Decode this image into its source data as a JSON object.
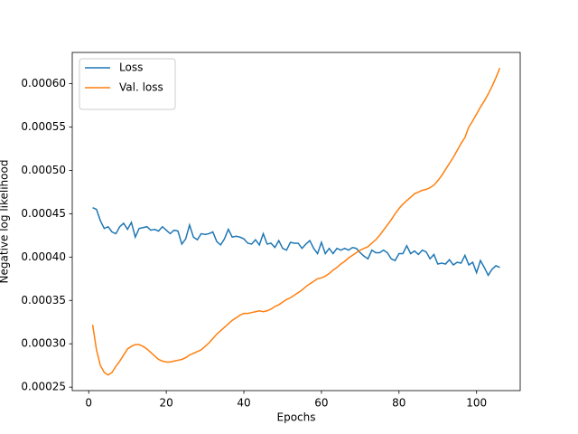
{
  "chart_data": {
    "type": "line",
    "xlabel": "Epochs",
    "ylabel": "Negative log likelihood",
    "x": [
      1,
      2,
      3,
      4,
      5,
      6,
      7,
      8,
      9,
      10,
      11,
      12,
      13,
      14,
      15,
      16,
      17,
      18,
      19,
      20,
      21,
      22,
      23,
      24,
      25,
      26,
      27,
      28,
      29,
      30,
      31,
      32,
      33,
      34,
      35,
      36,
      37,
      38,
      39,
      40,
      41,
      42,
      43,
      44,
      45,
      46,
      47,
      48,
      49,
      50,
      51,
      52,
      53,
      54,
      55,
      56,
      57,
      58,
      59,
      60,
      61,
      62,
      63,
      64,
      65,
      66,
      67,
      68,
      69,
      70,
      71,
      72,
      73,
      74,
      75,
      76,
      77,
      78,
      79,
      80,
      81,
      82,
      83,
      84,
      85,
      86,
      87,
      88,
      89,
      90,
      91,
      92,
      93,
      94,
      95,
      96,
      97,
      98,
      99,
      100,
      101,
      102,
      103,
      104,
      105,
      106
    ],
    "series": [
      {
        "name": "Loss",
        "color": "#1f77b4",
        "values": [
          0.000457,
          0.000455,
          0.000442,
          0.000433,
          0.000435,
          0.000429,
          0.000427,
          0.000435,
          0.000439,
          0.000432,
          0.00044,
          0.000423,
          0.000433,
          0.000434,
          0.000435,
          0.000431,
          0.000432,
          0.00043,
          0.000435,
          0.000431,
          0.000427,
          0.000431,
          0.00043,
          0.000415,
          0.000421,
          0.000437,
          0.000423,
          0.00042,
          0.000427,
          0.000426,
          0.000427,
          0.000429,
          0.000418,
          0.000414,
          0.000421,
          0.000432,
          0.000423,
          0.000424,
          0.000423,
          0.000421,
          0.000416,
          0.000415,
          0.00042,
          0.000414,
          0.000427,
          0.000415,
          0.000416,
          0.000411,
          0.000419,
          0.00041,
          0.000408,
          0.000417,
          0.000416,
          0.000416,
          0.00041,
          0.000415,
          0.000419,
          0.00041,
          0.000404,
          0.000417,
          0.000404,
          0.00041,
          0.000404,
          0.00041,
          0.000408,
          0.00041,
          0.000408,
          0.000411,
          0.00041,
          0.000405,
          0.000401,
          0.000398,
          0.000408,
          0.000405,
          0.000405,
          0.000408,
          0.000405,
          0.000398,
          0.000396,
          0.000404,
          0.000404,
          0.000413,
          0.000404,
          0.000407,
          0.000403,
          0.000408,
          0.000406,
          0.000398,
          0.000403,
          0.000392,
          0.000393,
          0.000392,
          0.000397,
          0.000391,
          0.000394,
          0.000393,
          0.000402,
          0.000391,
          0.000394,
          0.000382,
          0.000396,
          0.000388,
          0.000379,
          0.000386,
          0.00039,
          0.000388
        ]
      },
      {
        "name": "Val. loss",
        "color": "#ff7f0e",
        "values": [
          0.000322,
          0.000293,
          0.000275,
          0.000267,
          0.000264,
          0.000267,
          0.000274,
          0.00028,
          0.000287,
          0.000294,
          0.000297,
          0.000299,
          0.000299,
          0.000297,
          0.000294,
          0.00029,
          0.000286,
          0.000282,
          0.00028,
          0.000279,
          0.000279,
          0.00028,
          0.000281,
          0.000282,
          0.000284,
          0.000287,
          0.000289,
          0.000291,
          0.000293,
          0.000297,
          0.000301,
          0.000306,
          0.000311,
          0.000315,
          0.000319,
          0.000323,
          0.000327,
          0.00033,
          0.000333,
          0.000335,
          0.000335,
          0.000336,
          0.000337,
          0.000338,
          0.000337,
          0.000338,
          0.00034,
          0.000343,
          0.000345,
          0.000348,
          0.000351,
          0.000353,
          0.000356,
          0.000359,
          0.000362,
          0.000366,
          0.000369,
          0.000372,
          0.000375,
          0.000376,
          0.000378,
          0.000381,
          0.000385,
          0.000388,
          0.000392,
          0.000395,
          0.000399,
          0.000402,
          0.000405,
          0.000408,
          0.00041,
          0.000412,
          0.000416,
          0.00042,
          0.000425,
          0.000431,
          0.000437,
          0.000443,
          0.00045,
          0.000456,
          0.000461,
          0.000465,
          0.000469,
          0.000473,
          0.000475,
          0.000477,
          0.000478,
          0.00048,
          0.000483,
          0.000488,
          0.000494,
          0.000501,
          0.000508,
          0.000515,
          0.000523,
          0.000531,
          0.000538,
          0.00055,
          0.000557,
          0.000565,
          0.000573,
          0.00058,
          0.000588,
          0.000597,
          0.000607,
          0.000618
        ]
      }
    ],
    "xlim": [
      -4.25,
      111.25
    ],
    "ylim": [
      0.000246,
      0.000636
    ],
    "xticks": [
      0,
      20,
      40,
      60,
      80,
      100
    ],
    "yticks": [
      0.00025,
      {
        "value": 0.0003,
        "label": "0.00030"
      },
      0.00035,
      {
        "value": 0.0004,
        "label": "0.00040"
      },
      0.00045,
      {
        "value": 0.0005,
        "label": "0.00050"
      },
      0.00055,
      {
        "value": 0.0006,
        "label": "0.00060"
      }
    ],
    "legend": "upper left",
    "grid": false
  }
}
